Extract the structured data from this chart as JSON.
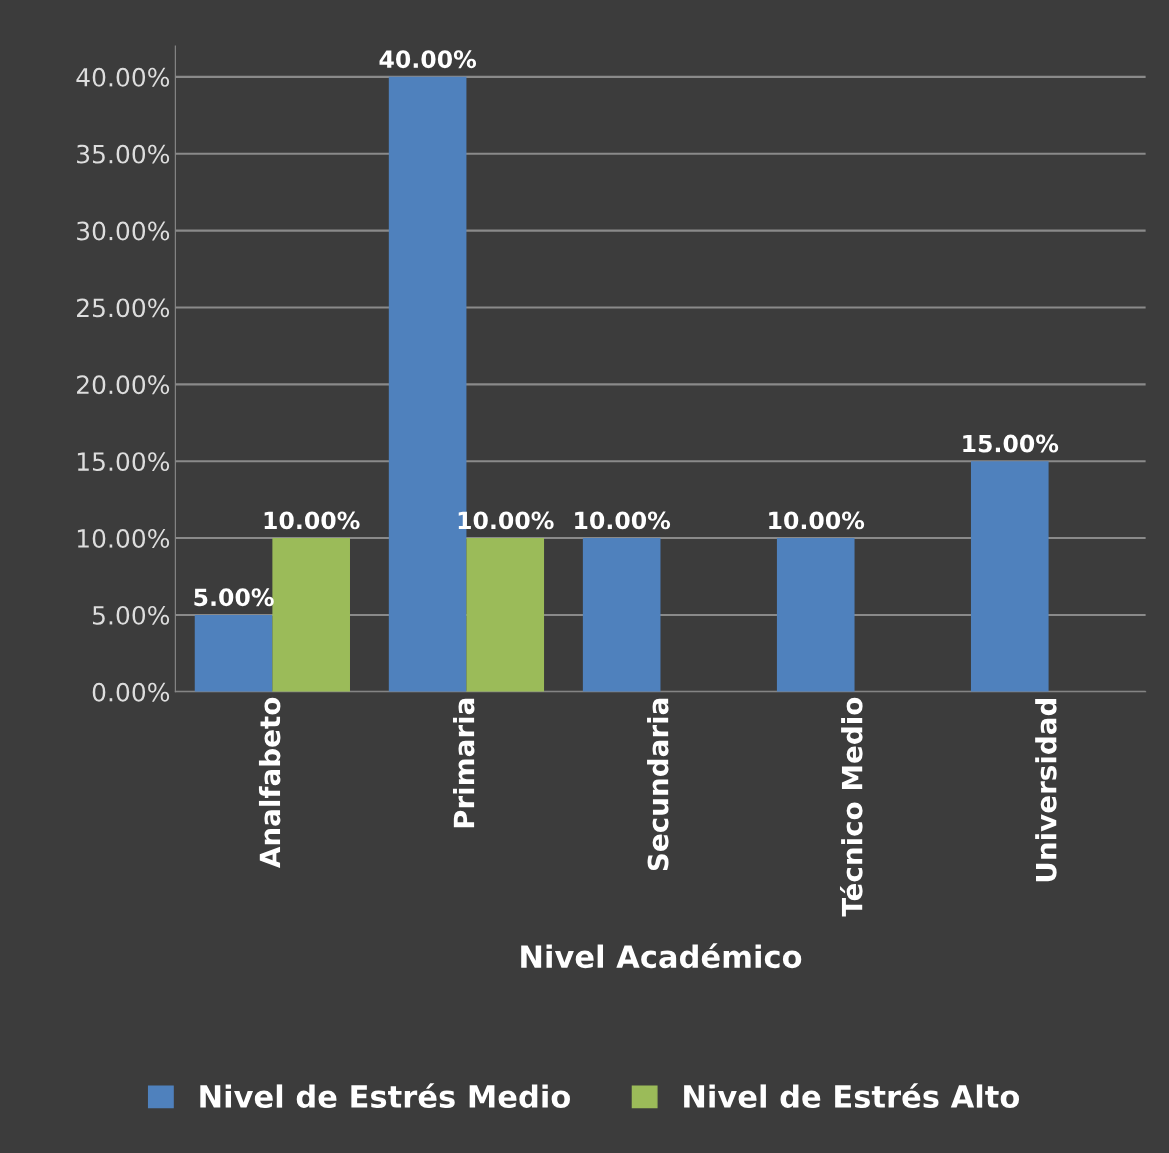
{
  "chart_data": {
    "type": "bar",
    "xlabel": "Nivel Académico",
    "categories": [
      "Analfabeto",
      "Primaria",
      "Secundaria",
      "Técnico Medio",
      "Universidad"
    ],
    "series": [
      {
        "name": "Nivel de Estrés Medio",
        "color": "#4f81bd",
        "values": [
          5,
          40,
          10,
          10,
          15
        ],
        "value_labels": [
          "5.00%",
          "40.00%",
          "10.00%",
          "10.00%",
          "15.00%"
        ]
      },
      {
        "name": "Nivel de Estrés Alto",
        "color": "#9bbb59",
        "values": [
          10,
          10,
          0,
          0,
          0
        ],
        "value_labels": [
          "10.00%",
          "10.00%",
          null,
          null,
          null
        ]
      }
    ],
    "ylim": [
      0,
      42
    ],
    "yticks": [
      {
        "value": 0,
        "label": "0.00%"
      },
      {
        "value": 5,
        "label": "5.00%"
      },
      {
        "value": 10,
        "label": "10.00%"
      },
      {
        "value": 15,
        "label": "15.00%"
      },
      {
        "value": 20,
        "label": "20.00%"
      },
      {
        "value": 25,
        "label": "25.00%"
      },
      {
        "value": 30,
        "label": "30.00%"
      },
      {
        "value": 35,
        "label": "35.00%"
      },
      {
        "value": 40,
        "label": "40.00%"
      }
    ],
    "grid": "y",
    "legend": "bottom"
  }
}
